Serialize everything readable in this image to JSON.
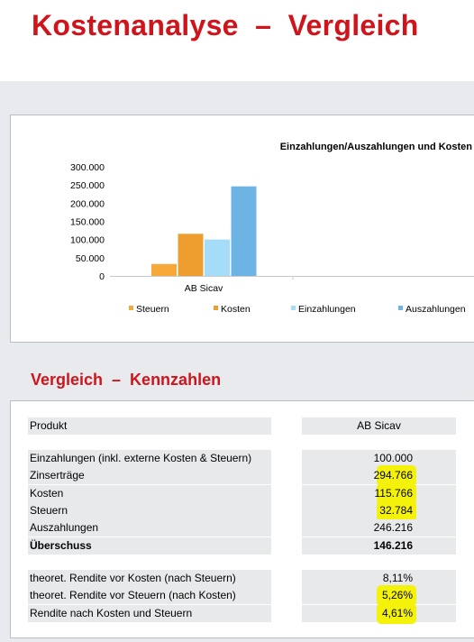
{
  "page": {
    "title": "Kostenanalyse  –  Vergleich",
    "section_title": "Vergleich  –  Kennzahlen"
  },
  "colors": {
    "accent_red": "#d0141b",
    "steuern": "#f7a83a",
    "kosten": "#ee9e2e",
    "einzahlungen": "#a5dcf8",
    "auszahlungen": "#6db4e5",
    "highlight": "#f4f20a"
  },
  "chart_data": {
    "type": "bar",
    "title": "Einzahlungen/Auszahlungen und Kosten",
    "categories": [
      "AB Sicav"
    ],
    "series": [
      {
        "name": "Steuern",
        "values": [
          32784
        ]
      },
      {
        "name": "Kosten",
        "values": [
          115766
        ]
      },
      {
        "name": "Einzahlungen",
        "values": [
          100000
        ]
      },
      {
        "name": "Auszahlungen",
        "values": [
          246216
        ]
      }
    ],
    "ylim": [
      0,
      300000
    ],
    "yticks": [
      0,
      50000,
      100000,
      150000,
      200000,
      250000,
      300000
    ],
    "ytick_labels": [
      "0",
      "50.000",
      "100.000",
      "150.000",
      "200.000",
      "250.000",
      "300.000"
    ],
    "legend_position": "bottom",
    "grid": false
  },
  "table": {
    "header": {
      "label": "Produkt",
      "value": "AB Sicav"
    },
    "rows": [
      {
        "label": "Einzahlungen (inkl. externe Kosten & Steuern)",
        "value": "100.000",
        "highlight": false
      },
      {
        "label": "Zinserträge",
        "value": "294.766",
        "highlight": true
      },
      {
        "label": "Kosten",
        "value": "115.766",
        "highlight": true
      },
      {
        "label": "Steuern",
        "value": "32.784",
        "highlight": true
      },
      {
        "label": "Auszahlungen",
        "value": "246.216",
        "highlight": false
      },
      {
        "label": "Überschuss",
        "value": "146.216",
        "highlight": false,
        "bold": true
      }
    ],
    "rendite": [
      {
        "label": "theoret. Rendite vor Kosten (nach Steuern)",
        "value": "8,11%",
        "highlight": false
      },
      {
        "label": "theoret. Rendite vor Steuern (nach Kosten)",
        "value": "5,26%",
        "highlight": true
      },
      {
        "label": "Rendite nach Kosten und Steuern",
        "value": "4,61%",
        "highlight": true
      }
    ]
  }
}
